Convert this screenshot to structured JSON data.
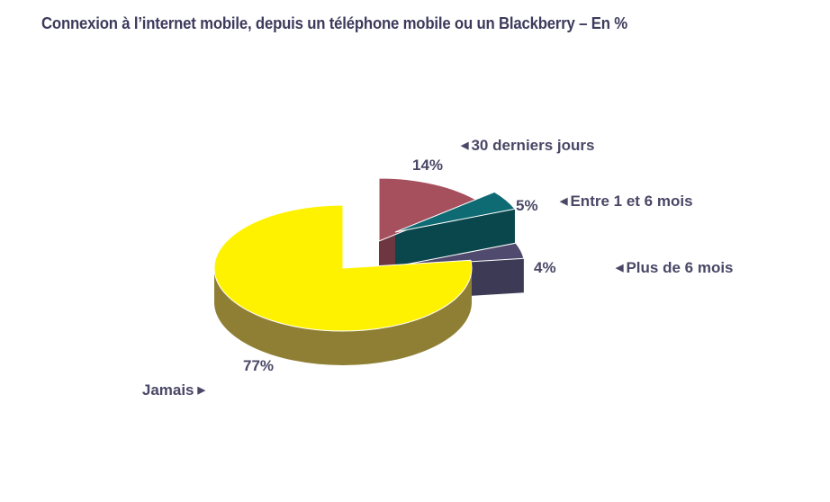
{
  "chart_data": {
    "type": "pie",
    "title": "Connexion à l’internet mobile, depuis un téléphone mobile ou un Blackberry – En %",
    "slices": [
      {
        "label": "30 derniers jours",
        "value": 14,
        "value_label": "14%",
        "color": "#a6505e",
        "side_color": "#6e3640"
      },
      {
        "label": "Entre 1 et 6 mois",
        "value": 5,
        "value_label": "5%",
        "color": "#0f6b73",
        "side_color": "#0a474d"
      },
      {
        "label": "Plus de 6 mois",
        "value": 4,
        "value_label": "4%",
        "color": "#4f4a6e",
        "side_color": "#3d3a55"
      },
      {
        "label": "Jamais",
        "value": 77,
        "value_label": "77%",
        "color": "#fff200",
        "side_color": "#8f7f35"
      }
    ],
    "legend_arrows": {
      "left": "◀",
      "right": "▶"
    }
  }
}
